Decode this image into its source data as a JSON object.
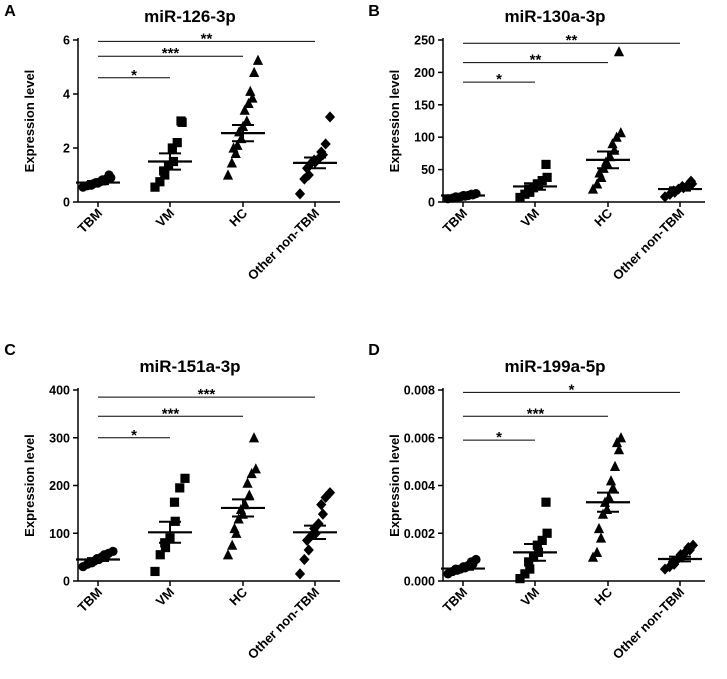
{
  "chart_data": [
    {
      "panel": "A",
      "type": "scatter",
      "title": "miR-126-3p",
      "xlabel": "",
      "ylabel": "Expression level",
      "categories": [
        "TBM",
        "VM",
        "HC",
        "Other non-TBM"
      ],
      "ylim": [
        0,
        6
      ],
      "yticks": [
        0,
        2,
        4,
        6
      ],
      "ytick_labels": [
        "0",
        "2",
        "4",
        "6"
      ],
      "marker": [
        "circle",
        "square",
        "triangle",
        "diamond"
      ],
      "points": [
        [
          0.55,
          0.6,
          0.62,
          0.65,
          0.68,
          0.7,
          0.72,
          0.75,
          0.78,
          0.82,
          0.86,
          0.9,
          1.0
        ],
        [
          0.55,
          0.75,
          1.0,
          1.15,
          1.35,
          1.5,
          2.0,
          2.2,
          2.95,
          3.0
        ],
        [
          1.0,
          1.45,
          1.8,
          2.0,
          2.1,
          2.35,
          2.6,
          2.8,
          3.0,
          3.4,
          3.65,
          3.85,
          4.1,
          4.8,
          5.25
        ],
        [
          0.3,
          0.85,
          1.0,
          1.25,
          1.45,
          1.5,
          1.55,
          1.6,
          1.75,
          1.85,
          2.15,
          3.15
        ]
      ],
      "mean": [
        0.72,
        1.5,
        2.55,
        1.45
      ],
      "sem": [
        0.06,
        0.3,
        0.3,
        0.2
      ],
      "significance": [
        {
          "from": "TBM",
          "to": "VM",
          "label": "*",
          "y": 4.6
        },
        {
          "from": "TBM",
          "to": "HC",
          "label": "***",
          "y": 5.4
        },
        {
          "from": "TBM",
          "to": "Other non-TBM",
          "label": "**",
          "y": 5.95
        }
      ]
    },
    {
      "panel": "B",
      "type": "scatter",
      "title": "miR-130a-3p",
      "xlabel": "",
      "ylabel": "Expression level",
      "categories": [
        "TBM",
        "VM",
        "HC",
        "Other non-TBM"
      ],
      "ylim": [
        0,
        250
      ],
      "yticks": [
        0,
        50,
        100,
        150,
        200,
        250
      ],
      "ytick_labels": [
        "0",
        "50",
        "100",
        "150",
        "200",
        "250"
      ],
      "marker": [
        "circle",
        "square",
        "triangle",
        "diamond"
      ],
      "points": [
        [
          5,
          6,
          7,
          8,
          8,
          9,
          10,
          10,
          11,
          12,
          13
        ],
        [
          7,
          12,
          15,
          20,
          22,
          25,
          28,
          33,
          38,
          58
        ],
        [
          20,
          28,
          38,
          45,
          52,
          58,
          62,
          70,
          80,
          90,
          100,
          107,
          232
        ],
        [
          8,
          12,
          15,
          17,
          20,
          22,
          24,
          25,
          28,
          32
        ]
      ],
      "mean": [
        10,
        24,
        65,
        20
      ],
      "sem": [
        1,
        5,
        13,
        2.5
      ],
      "significance": [
        {
          "from": "TBM",
          "to": "VM",
          "label": "*",
          "y": 185
        },
        {
          "from": "TBM",
          "to": "HC",
          "label": "**",
          "y": 215
        },
        {
          "from": "TBM",
          "to": "Other non-TBM",
          "label": "**",
          "y": 245
        }
      ]
    },
    {
      "panel": "C",
      "type": "scatter",
      "title": "miR-151a-3p",
      "xlabel": "",
      "ylabel": "Expression level",
      "categories": [
        "TBM",
        "VM",
        "HC",
        "Other non-TBM"
      ],
      "ylim": [
        0,
        400
      ],
      "yticks": [
        0,
        100,
        200,
        300,
        400
      ],
      "ytick_labels": [
        "0",
        "100",
        "200",
        "300",
        "400"
      ],
      "marker": [
        "circle",
        "square",
        "triangle",
        "diamond"
      ],
      "points": [
        [
          30,
          35,
          38,
          40,
          42,
          45,
          47,
          50,
          52,
          55,
          58,
          62
        ],
        [
          20,
          55,
          70,
          80,
          90,
          125,
          165,
          195,
          215
        ],
        [
          55,
          75,
          100,
          110,
          130,
          140,
          150,
          160,
          180,
          205,
          225,
          235,
          300
        ],
        [
          15,
          45,
          65,
          85,
          95,
          100,
          110,
          120,
          140,
          160,
          175,
          185
        ]
      ],
      "mean": [
        45,
        102,
        153,
        102
      ],
      "sem": [
        3,
        22,
        18,
        14
      ],
      "significance": [
        {
          "from": "TBM",
          "to": "VM",
          "label": "*",
          "y": 300
        },
        {
          "from": "TBM",
          "to": "HC",
          "label": "***",
          "y": 345
        },
        {
          "from": "TBM",
          "to": "Other non-TBM",
          "label": "***",
          "y": 385
        }
      ]
    },
    {
      "panel": "D",
      "type": "scatter",
      "title": "miR-199a-5p",
      "xlabel": "",
      "ylabel": "Expression level",
      "categories": [
        "TBM",
        "VM",
        "HC",
        "Other non-TBM"
      ],
      "ylim": [
        0,
        0.008
      ],
      "yticks": [
        0,
        0.002,
        0.004,
        0.006,
        0.008
      ],
      "ytick_labels": [
        "0.000",
        "0.002",
        "0.004",
        "0.006",
        "0.008"
      ],
      "marker": [
        "circle",
        "square",
        "triangle",
        "diamond"
      ],
      "points": [
        [
          0.0003,
          0.0004,
          0.00045,
          0.0005,
          0.0005,
          0.00055,
          0.0006,
          0.00065,
          0.0007,
          0.0008,
          0.0009
        ],
        [
          0.0001,
          0.0003,
          0.0005,
          0.0008,
          0.001,
          0.0012,
          0.0015,
          0.0017,
          0.002,
          0.0033
        ],
        [
          0.001,
          0.0012,
          0.0018,
          0.0022,
          0.0028,
          0.003,
          0.0033,
          0.0035,
          0.0039,
          0.0042,
          0.0048,
          0.0055,
          0.0058,
          0.006
        ],
        [
          0.0005,
          0.0006,
          0.0007,
          0.0008,
          0.0009,
          0.001,
          0.0011,
          0.0012,
          0.0013,
          0.0014,
          0.0015
        ]
      ],
      "mean": [
        0.00052,
        0.0012,
        0.0033,
        0.00092
      ],
      "sem": [
        5e-05,
        0.00035,
        0.0004,
        0.0001
      ],
      "significance": [
        {
          "from": "TBM",
          "to": "VM",
          "label": "*",
          "y": 0.0059
        },
        {
          "from": "TBM",
          "to": "HC",
          "label": "***",
          "y": 0.0069
        },
        {
          "from": "TBM",
          "to": "Other non-TBM",
          "label": "*",
          "y": 0.0079
        }
      ]
    }
  ]
}
